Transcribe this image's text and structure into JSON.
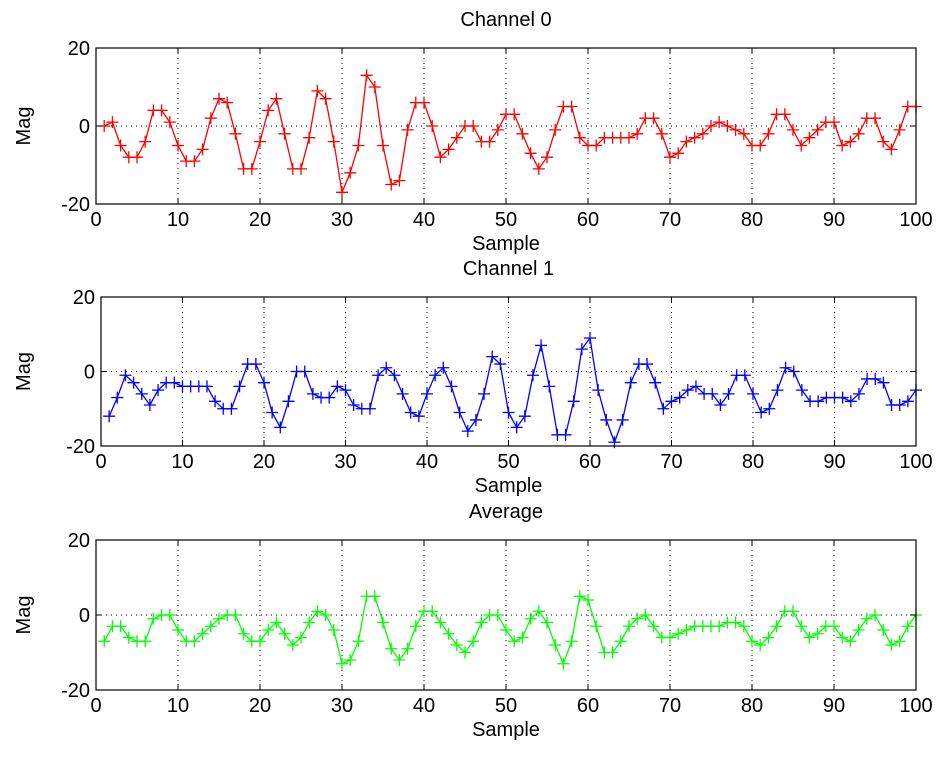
{
  "figure": {
    "background": "#ffffff"
  },
  "chart_data": [
    {
      "type": "line",
      "title": "Channel 0",
      "xlabel": "Sample",
      "ylabel": "Mag",
      "xlim": [
        0,
        100
      ],
      "ylim": [
        -20,
        20
      ],
      "xticks": [
        0,
        10,
        20,
        30,
        40,
        50,
        60,
        70,
        80,
        90,
        100
      ],
      "yticks": [
        -20,
        0,
        20
      ],
      "grid": true,
      "marker": "+",
      "series": [
        {
          "color": "#ff0000",
          "x": [
            1,
            2,
            3,
            4,
            5,
            6,
            7,
            8,
            9,
            10,
            11,
            12,
            13,
            14,
            15,
            16,
            17,
            18,
            19,
            20,
            21,
            22,
            23,
            24,
            25,
            26,
            27,
            28,
            29,
            30,
            31,
            32,
            33,
            34,
            35,
            36,
            37,
            38,
            39,
            40,
            41,
            42,
            43,
            44,
            45,
            46,
            47,
            48,
            49,
            50,
            51,
            52,
            53,
            54,
            55,
            56,
            57,
            58,
            59,
            60,
            61,
            62,
            63,
            64,
            65,
            66,
            67,
            68,
            69,
            70,
            71,
            72,
            73,
            74,
            75,
            76,
            77,
            78,
            79,
            80,
            81,
            82,
            83,
            84,
            85,
            86,
            87,
            88,
            89,
            90,
            91,
            92,
            93,
            94,
            95,
            96,
            97,
            98,
            99,
            100
          ],
          "values": [
            0,
            1,
            -5,
            -8,
            -8,
            -4,
            4,
            4,
            1,
            -5,
            -9,
            -9,
            -6,
            2,
            7,
            6,
            -2,
            -11,
            -11,
            -4,
            4,
            7,
            -2,
            -11,
            -11,
            -3,
            9,
            7,
            -4,
            -17,
            -12,
            -5,
            13,
            10,
            -5,
            -15,
            -14,
            -1,
            6,
            6,
            0,
            -8,
            -6,
            -3,
            0,
            0,
            -4,
            -4,
            -1,
            3,
            3,
            -2,
            -7,
            -11,
            -8,
            -1,
            5,
            5,
            -3,
            -5,
            -5,
            -3,
            -3,
            -3,
            -3,
            -2,
            2,
            2,
            -2,
            -8,
            -7,
            -4,
            -3,
            -2,
            0,
            1,
            0,
            -1,
            -2,
            -5,
            -5,
            -2,
            3,
            3,
            -1,
            -5,
            -3,
            -1,
            1,
            1,
            -5,
            -4,
            -2,
            2,
            2,
            -4,
            -6,
            -1,
            5,
            5
          ]
        }
      ]
    },
    {
      "type": "line",
      "title": "Channel 1",
      "xlabel": "Sample",
      "ylabel": "Mag",
      "xlim": [
        0,
        100
      ],
      "ylim": [
        -20,
        20
      ],
      "xticks": [
        0,
        10,
        20,
        30,
        40,
        50,
        60,
        70,
        80,
        90,
        100
      ],
      "yticks": [
        -20,
        0,
        20
      ],
      "grid": true,
      "marker": "+",
      "series": [
        {
          "color": "#0000ff",
          "x": [
            1,
            2,
            3,
            4,
            5,
            6,
            7,
            8,
            9,
            10,
            11,
            12,
            13,
            14,
            15,
            16,
            17,
            18,
            19,
            20,
            21,
            22,
            23,
            24,
            25,
            26,
            27,
            28,
            29,
            30,
            31,
            32,
            33,
            34,
            35,
            36,
            37,
            38,
            39,
            40,
            41,
            42,
            43,
            44,
            45,
            46,
            47,
            48,
            49,
            50,
            51,
            52,
            53,
            54,
            55,
            56,
            57,
            58,
            59,
            60,
            61,
            62,
            63,
            64,
            65,
            66,
            67,
            68,
            69,
            70,
            71,
            72,
            73,
            74,
            75,
            76,
            77,
            78,
            79,
            80,
            81,
            82,
            83,
            84,
            85,
            86,
            87,
            88,
            89,
            90,
            91,
            92,
            93,
            94,
            95,
            96,
            97,
            98,
            99,
            100
          ],
          "values": [
            -12,
            -7,
            -1,
            -3,
            -6,
            -9,
            -5,
            -3,
            -3,
            -4,
            -4,
            -4,
            -4,
            -8,
            -10,
            -10,
            -4,
            2,
            2,
            -3,
            -11,
            -15,
            -8,
            0,
            0,
            -6,
            -7,
            -7,
            -4,
            -5,
            -9,
            -10,
            -10,
            -1,
            1,
            -1,
            -6,
            -11,
            -12,
            -6,
            -1,
            1,
            -4,
            -11,
            -16,
            -13,
            -6,
            4,
            2,
            -11,
            -15,
            -12,
            -1,
            7,
            -4,
            -17,
            -17,
            -8,
            6,
            9,
            -5,
            -13,
            -19,
            -13,
            -3,
            2,
            2,
            -3,
            -10,
            -8,
            -7,
            -5,
            -4,
            -6,
            -6,
            -9,
            -6,
            -1,
            -1,
            -6,
            -11,
            -10,
            -5,
            1,
            0,
            -5,
            -8,
            -8,
            -7,
            -7,
            -7,
            -8,
            -6,
            -2,
            -2,
            -3,
            -9,
            -9,
            -8,
            -5
          ]
        }
      ]
    },
    {
      "type": "line",
      "title": "Average",
      "xlabel": "Sample",
      "ylabel": "Mag",
      "xlim": [
        0,
        100
      ],
      "ylim": [
        -20,
        20
      ],
      "xticks": [
        0,
        10,
        20,
        30,
        40,
        50,
        60,
        70,
        80,
        90,
        100
      ],
      "yticks": [
        -20,
        0,
        20
      ],
      "grid": true,
      "marker": "+",
      "series": [
        {
          "color": "#00ff00",
          "x": [
            1,
            2,
            3,
            4,
            5,
            6,
            7,
            8,
            9,
            10,
            11,
            12,
            13,
            14,
            15,
            16,
            17,
            18,
            19,
            20,
            21,
            22,
            23,
            24,
            25,
            26,
            27,
            28,
            29,
            30,
            31,
            32,
            33,
            34,
            35,
            36,
            37,
            38,
            39,
            40,
            41,
            42,
            43,
            44,
            45,
            46,
            47,
            48,
            49,
            50,
            51,
            52,
            53,
            54,
            55,
            56,
            57,
            58,
            59,
            60,
            61,
            62,
            63,
            64,
            65,
            66,
            67,
            68,
            69,
            70,
            71,
            72,
            73,
            74,
            75,
            76,
            77,
            78,
            79,
            80,
            81,
            82,
            83,
            84,
            85,
            86,
            87,
            88,
            89,
            90,
            91,
            92,
            93,
            94,
            95,
            96,
            97,
            98,
            99,
            100
          ],
          "values": [
            -7,
            -3,
            -3,
            -6,
            -7,
            -7,
            -1,
            0,
            0,
            -4,
            -7,
            -7,
            -5,
            -3,
            -1,
            0,
            0,
            -5,
            -7,
            -7,
            -4,
            -2,
            -5,
            -8,
            -6,
            -2,
            1,
            0,
            -4,
            -13,
            -12,
            -7,
            5,
            5,
            -2,
            -9,
            -12,
            -9,
            -3,
            1,
            1,
            -2,
            -5,
            -8,
            -10,
            -7,
            -2,
            0,
            0,
            -4,
            -7,
            -6,
            -1,
            1,
            -2,
            -8,
            -13,
            -7,
            5,
            4,
            -3,
            -10,
            -10,
            -7,
            -3,
            -1,
            0,
            -3,
            -6,
            -6,
            -5,
            -4,
            -3,
            -3,
            -3,
            -3,
            -2,
            -2,
            -3,
            -7,
            -8,
            -6,
            -3,
            1,
            1,
            -3,
            -6,
            -5,
            -3,
            -3,
            -6,
            -7,
            -4,
            -1,
            0,
            -4,
            -8,
            -7,
            -3,
            0
          ]
        }
      ]
    }
  ]
}
